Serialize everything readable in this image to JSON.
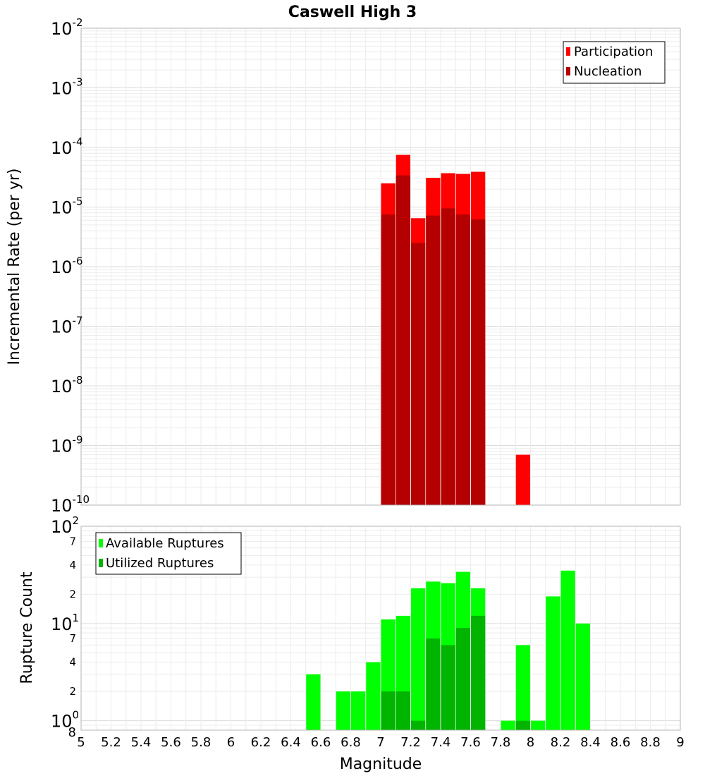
{
  "chart_data": [
    {
      "type": "bar",
      "title": "Caswell High 3",
      "ylabel": "Incremental Rate (per yr)",
      "yscale": "log",
      "ylim": [
        1e-10,
        0.01
      ],
      "xlim": [
        5,
        9
      ],
      "y_tick_labels": [
        {
          "base": "10",
          "exp": "-10",
          "value": 1e-10
        },
        {
          "base": "10",
          "exp": "-9",
          "value": 1e-09
        },
        {
          "base": "10",
          "exp": "-8",
          "value": 1e-08
        },
        {
          "base": "10",
          "exp": "-7",
          "value": 1e-07
        },
        {
          "base": "10",
          "exp": "-6",
          "value": 1e-06
        },
        {
          "base": "10",
          "exp": "-5",
          "value": 1e-05
        },
        {
          "base": "10",
          "exp": "-4",
          "value": 0.0001
        },
        {
          "base": "10",
          "exp": "-3",
          "value": 0.001
        },
        {
          "base": "10",
          "exp": "-2",
          "value": 0.01
        }
      ],
      "legend": {
        "position": "top-right",
        "entries": [
          "Participation",
          "Nucleation"
        ]
      },
      "series": [
        {
          "name": "Participation",
          "color": "#ff0000",
          "x": [
            7.0,
            7.1,
            7.2,
            7.3,
            7.4,
            7.5,
            7.6,
            7.9
          ],
          "values": [
            2.5e-05,
            7.5e-05,
            6.5e-06,
            3.1e-05,
            3.7e-05,
            3.6e-05,
            3.9e-05,
            7e-10
          ]
        },
        {
          "name": "Nucleation",
          "color": "#b40000",
          "x": [
            7.0,
            7.1,
            7.2,
            7.3,
            7.4,
            7.5,
            7.6
          ],
          "values": [
            7.5e-06,
            3.4e-05,
            2.5e-06,
            7.2e-06,
            9.5e-06,
            7.5e-06,
            6.2e-06
          ]
        }
      ]
    },
    {
      "type": "bar",
      "xlabel": "Magnitude",
      "ylabel": "Rupture Count",
      "yscale": "log",
      "ylim": [
        0.8,
        100
      ],
      "xlim": [
        5,
        9
      ],
      "x_tick_labels": [
        "5",
        "5.2",
        "5.4",
        "5.6",
        "5.8",
        "6",
        "6.2",
        "6.4",
        "6.6",
        "6.8",
        "7",
        "7.2",
        "7.4",
        "7.6",
        "7.8",
        "8",
        "8.2",
        "8.4",
        "8.6",
        "8.8",
        "9"
      ],
      "y_major_ticks": [
        {
          "base": "10",
          "exp": "0",
          "value": 1
        },
        {
          "base": "10",
          "exp": "1",
          "value": 10
        },
        {
          "base": "10",
          "exp": "2",
          "value": 100
        }
      ],
      "y_minor_ticks": [
        {
          "label": "8",
          "value": 0.8
        },
        {
          "label": "2",
          "value": 2
        },
        {
          "label": "4",
          "value": 4
        },
        {
          "label": "7",
          "value": 7
        },
        {
          "label": "2",
          "value": 20
        },
        {
          "label": "4",
          "value": 40
        },
        {
          "label": "7",
          "value": 70
        }
      ],
      "legend": {
        "position": "top-left",
        "entries": [
          "Available Ruptures",
          "Utilized Ruptures"
        ]
      },
      "series": [
        {
          "name": "Available Ruptures",
          "color": "#00ff00",
          "x": [
            6.5,
            6.7,
            6.8,
            6.9,
            7.0,
            7.1,
            7.2,
            7.3,
            7.4,
            7.5,
            7.6,
            7.8,
            7.9,
            8.0,
            8.1,
            8.2,
            8.3
          ],
          "values": [
            3,
            2,
            2,
            4,
            11,
            12,
            23,
            27,
            26,
            34,
            23,
            1,
            6,
            1,
            19,
            35,
            10
          ]
        },
        {
          "name": "Utilized Ruptures",
          "color": "#00b400",
          "x": [
            7.0,
            7.1,
            7.2,
            7.3,
            7.4,
            7.5,
            7.6,
            7.9
          ],
          "values": [
            2,
            2,
            1,
            7,
            6,
            9,
            12,
            1
          ]
        }
      ]
    }
  ]
}
